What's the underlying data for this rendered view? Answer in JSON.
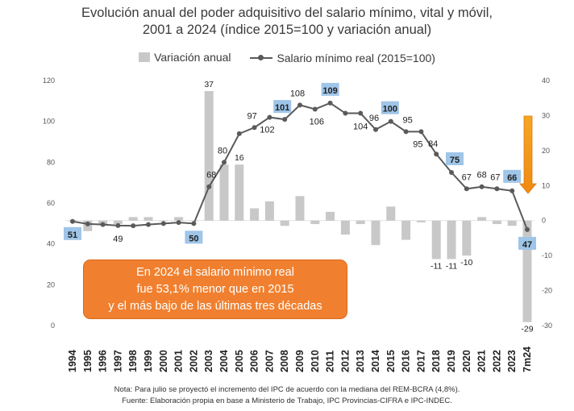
{
  "title_line1": "Evolución anual del poder adquisitivo del salario mínimo, vital y móvil,",
  "title_line2": "2001 a 2024 (índice 2015=100 y variación anual)",
  "legend": {
    "bars": "Variación anual",
    "line": "Salario mínimo real (2015=100)"
  },
  "callout": {
    "line1": "En 2024 el salario mínimo real",
    "line2": "fue 53,1% menor que en 2015",
    "line3": "y el más bajo de las últimas tres décadas"
  },
  "footnote1": "Nota: Para julio se proyectó el incremento del IPC de acuerdo con la mediana del REM-BCRA (4,8%).",
  "footnote2": "Fuente: Elaboración propia en base a Ministerio de Trabajo, IPC Provincias-CIFRA e IPC-INDEC.",
  "colors": {
    "bar": "#c8c8c8",
    "line": "#5a5a5a",
    "highlight": "#9fc5e8",
    "arrow": "#f0901e",
    "callout": "#f0802f"
  },
  "chart_data": {
    "type": "bar+line",
    "categories": [
      "1994",
      "1995",
      "1996",
      "1997",
      "1998",
      "1999",
      "2000",
      "2001",
      "2002",
      "2003",
      "2004",
      "2005",
      "2006",
      "2007",
      "2008",
      "2009",
      "2010",
      "2011",
      "2012",
      "2013",
      "2014",
      "2015",
      "2016",
      "2017",
      "2018",
      "2019",
      "2020",
      "2021",
      "2022",
      "2023",
      "7m24"
    ],
    "series": [
      {
        "name": "Variación anual",
        "type": "bar",
        "axis": "right",
        "values": [
          0,
          -3,
          -1,
          -1,
          1,
          1,
          0,
          1,
          0,
          37,
          16,
          16,
          3.5,
          5.5,
          -1.5,
          7,
          -1,
          2.5,
          -4,
          -1,
          -7,
          4,
          -5.5,
          -0.5,
          -11,
          -11,
          -10,
          1,
          -1,
          -1.5,
          -29
        ],
        "labels": [
          null,
          null,
          null,
          null,
          null,
          null,
          null,
          null,
          null,
          "37",
          null,
          "16",
          null,
          null,
          null,
          null,
          null,
          null,
          null,
          null,
          null,
          null,
          null,
          null,
          "-11",
          "-11",
          "-10",
          null,
          null,
          null,
          "-29"
        ]
      },
      {
        "name": "Salario mínimo real (2015=100)",
        "type": "line",
        "axis": "left",
        "values": [
          51,
          49.8,
          49.5,
          49,
          48.9,
          49.5,
          50,
          50.5,
          50,
          68,
          80,
          94,
          97,
          102,
          101,
          108,
          106,
          109,
          104,
          104,
          96,
          100,
          95,
          95,
          84,
          75,
          67,
          68,
          67,
          66,
          47
        ],
        "labels": [
          "51",
          null,
          null,
          "49",
          null,
          null,
          null,
          null,
          "50",
          "68",
          "80",
          null,
          "97",
          "102",
          "101",
          "108",
          "106",
          "109",
          null,
          "104",
          "96",
          "100",
          "95",
          "95",
          "84",
          "75",
          "67",
          "68",
          "67",
          "66",
          "47"
        ],
        "highlighted": [
          "1994",
          "2002",
          "2008",
          "2011",
          "2015",
          "2019",
          "2023",
          "7m24"
        ]
      }
    ],
    "y_left": {
      "min": 0,
      "max": 120,
      "ticks": [
        0,
        20,
        40,
        60,
        80,
        100,
        120
      ]
    },
    "y_right": {
      "min": -30,
      "max": 40,
      "ticks": [
        -30,
        -20,
        -10,
        0,
        10,
        20,
        30,
        40
      ]
    }
  }
}
